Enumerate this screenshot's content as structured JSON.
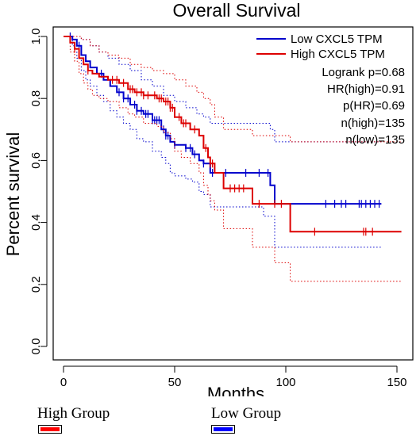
{
  "chart_data": {
    "type": "line",
    "title": "Overall Survival",
    "xlabel": "Months",
    "ylabel": "Percent survival",
    "xlim": [
      0,
      155
    ],
    "ylim": [
      0,
      1.0
    ],
    "x_ticks": [
      0,
      50,
      100,
      150
    ],
    "y_ticks": [
      0.0,
      0.2,
      0.4,
      0.6,
      0.8,
      1.0
    ],
    "legend_position": "top-right",
    "series": [
      {
        "name": "Low CXCL5 TPM",
        "color": "#0000cc",
        "steps": [
          [
            0,
            1.0
          ],
          [
            4,
            0.99
          ],
          [
            6,
            0.97
          ],
          [
            8,
            0.94
          ],
          [
            10,
            0.92
          ],
          [
            12,
            0.9
          ],
          [
            15,
            0.88
          ],
          [
            18,
            0.86
          ],
          [
            21,
            0.84
          ],
          [
            24,
            0.82
          ],
          [
            27,
            0.8
          ],
          [
            30,
            0.78
          ],
          [
            33,
            0.76
          ],
          [
            36,
            0.75
          ],
          [
            40,
            0.73
          ],
          [
            44,
            0.7
          ],
          [
            46,
            0.68
          ],
          [
            48,
            0.66
          ],
          [
            50,
            0.65
          ],
          [
            55,
            0.64
          ],
          [
            58,
            0.62
          ],
          [
            61,
            0.6
          ],
          [
            63,
            0.59
          ],
          [
            66,
            0.56
          ],
          [
            93,
            0.52
          ],
          [
            95,
            0.46
          ],
          [
            143,
            0.46
          ]
        ],
        "upper": [
          [
            0,
            1.0
          ],
          [
            5,
            1.0
          ],
          [
            8,
            0.99
          ],
          [
            12,
            0.97
          ],
          [
            16,
            0.95
          ],
          [
            20,
            0.93
          ],
          [
            25,
            0.91
          ],
          [
            30,
            0.89
          ],
          [
            35,
            0.86
          ],
          [
            40,
            0.84
          ],
          [
            45,
            0.81
          ],
          [
            50,
            0.79
          ],
          [
            55,
            0.77
          ],
          [
            60,
            0.75
          ],
          [
            63,
            0.74
          ],
          [
            66,
            0.72
          ],
          [
            93,
            0.7
          ],
          [
            95,
            0.66
          ],
          [
            143,
            0.66
          ]
        ],
        "lower": [
          [
            0,
            1.0
          ],
          [
            4,
            0.97
          ],
          [
            6,
            0.93
          ],
          [
            8,
            0.89
          ],
          [
            10,
            0.86
          ],
          [
            12,
            0.84
          ],
          [
            15,
            0.81
          ],
          [
            18,
            0.79
          ],
          [
            21,
            0.76
          ],
          [
            24,
            0.74
          ],
          [
            27,
            0.72
          ],
          [
            30,
            0.7
          ],
          [
            33,
            0.67
          ],
          [
            36,
            0.66
          ],
          [
            40,
            0.63
          ],
          [
            44,
            0.61
          ],
          [
            46,
            0.59
          ],
          [
            48,
            0.56
          ],
          [
            50,
            0.55
          ],
          [
            55,
            0.54
          ],
          [
            58,
            0.53
          ],
          [
            61,
            0.5
          ],
          [
            63,
            0.49
          ],
          [
            66,
            0.45
          ],
          [
            90,
            0.42
          ],
          [
            95,
            0.32
          ],
          [
            143,
            0.32
          ]
        ],
        "censor_x": [
          3,
          7,
          17,
          25,
          27,
          29,
          32,
          33,
          35,
          37,
          38,
          40,
          41,
          42,
          43,
          45,
          46,
          47,
          50,
          55,
          57,
          59,
          63,
          67,
          73,
          82,
          88,
          92,
          118,
          122,
          125,
          127,
          133,
          134,
          136,
          138,
          140,
          142
        ]
      },
      {
        "name": "High CXCL5 TPM",
        "color": "#dd0000",
        "steps": [
          [
            0,
            1.0
          ],
          [
            3,
            0.98
          ],
          [
            5,
            0.96
          ],
          [
            7,
            0.93
          ],
          [
            9,
            0.91
          ],
          [
            11,
            0.89
          ],
          [
            13,
            0.88
          ],
          [
            16,
            0.87
          ],
          [
            20,
            0.86
          ],
          [
            25,
            0.85
          ],
          [
            29,
            0.83
          ],
          [
            32,
            0.82
          ],
          [
            36,
            0.81
          ],
          [
            42,
            0.8
          ],
          [
            45,
            0.79
          ],
          [
            48,
            0.77
          ],
          [
            50,
            0.74
          ],
          [
            53,
            0.72
          ],
          [
            57,
            0.7
          ],
          [
            61,
            0.68
          ],
          [
            63,
            0.64
          ],
          [
            65,
            0.61
          ],
          [
            66,
            0.59
          ],
          [
            68,
            0.56
          ],
          [
            72,
            0.51
          ],
          [
            85,
            0.46
          ],
          [
            102,
            0.37
          ],
          [
            152,
            0.37
          ]
        ],
        "upper": [
          [
            0,
            1.0
          ],
          [
            5,
            1.0
          ],
          [
            8,
            0.99
          ],
          [
            12,
            0.97
          ],
          [
            16,
            0.95
          ],
          [
            20,
            0.94
          ],
          [
            25,
            0.93
          ],
          [
            30,
            0.91
          ],
          [
            35,
            0.9
          ],
          [
            40,
            0.89
          ],
          [
            45,
            0.88
          ],
          [
            50,
            0.86
          ],
          [
            55,
            0.84
          ],
          [
            60,
            0.82
          ],
          [
            63,
            0.8
          ],
          [
            66,
            0.78
          ],
          [
            68,
            0.74
          ],
          [
            72,
            0.7
          ],
          [
            85,
            0.68
          ],
          [
            102,
            0.66
          ],
          [
            152,
            0.66
          ]
        ],
        "lower": [
          [
            0,
            1.0
          ],
          [
            3,
            0.95
          ],
          [
            5,
            0.92
          ],
          [
            7,
            0.88
          ],
          [
            9,
            0.85
          ],
          [
            11,
            0.83
          ],
          [
            13,
            0.81
          ],
          [
            16,
            0.8
          ],
          [
            20,
            0.79
          ],
          [
            25,
            0.77
          ],
          [
            29,
            0.75
          ],
          [
            32,
            0.74
          ],
          [
            36,
            0.72
          ],
          [
            42,
            0.71
          ],
          [
            45,
            0.69
          ],
          [
            48,
            0.67
          ],
          [
            50,
            0.63
          ],
          [
            53,
            0.61
          ],
          [
            57,
            0.59
          ],
          [
            61,
            0.56
          ],
          [
            63,
            0.52
          ],
          [
            65,
            0.49
          ],
          [
            66,
            0.47
          ],
          [
            68,
            0.44
          ],
          [
            72,
            0.38
          ],
          [
            85,
            0.32
          ],
          [
            95,
            0.27
          ],
          [
            102,
            0.21
          ],
          [
            152,
            0.21
          ]
        ],
        "censor_x": [
          5,
          11,
          22,
          24,
          27,
          30,
          31,
          33,
          35,
          36,
          38,
          41,
          43,
          44,
          46,
          47,
          48,
          49,
          52,
          54,
          55,
          59,
          64,
          66,
          67,
          75,
          77,
          79,
          81,
          88,
          95,
          98,
          113,
          135,
          136,
          139
        ]
      }
    ],
    "annotations": [
      "Logrank p=0.68",
      "HR(high)=0.91",
      "p(HR)=0.69",
      "n(high)=135",
      "n(low)=135"
    ]
  },
  "groups": {
    "high": {
      "label": "High Group",
      "color": "#ff0000"
    },
    "low": {
      "label": "Low Group",
      "color": "#0000ff"
    }
  }
}
